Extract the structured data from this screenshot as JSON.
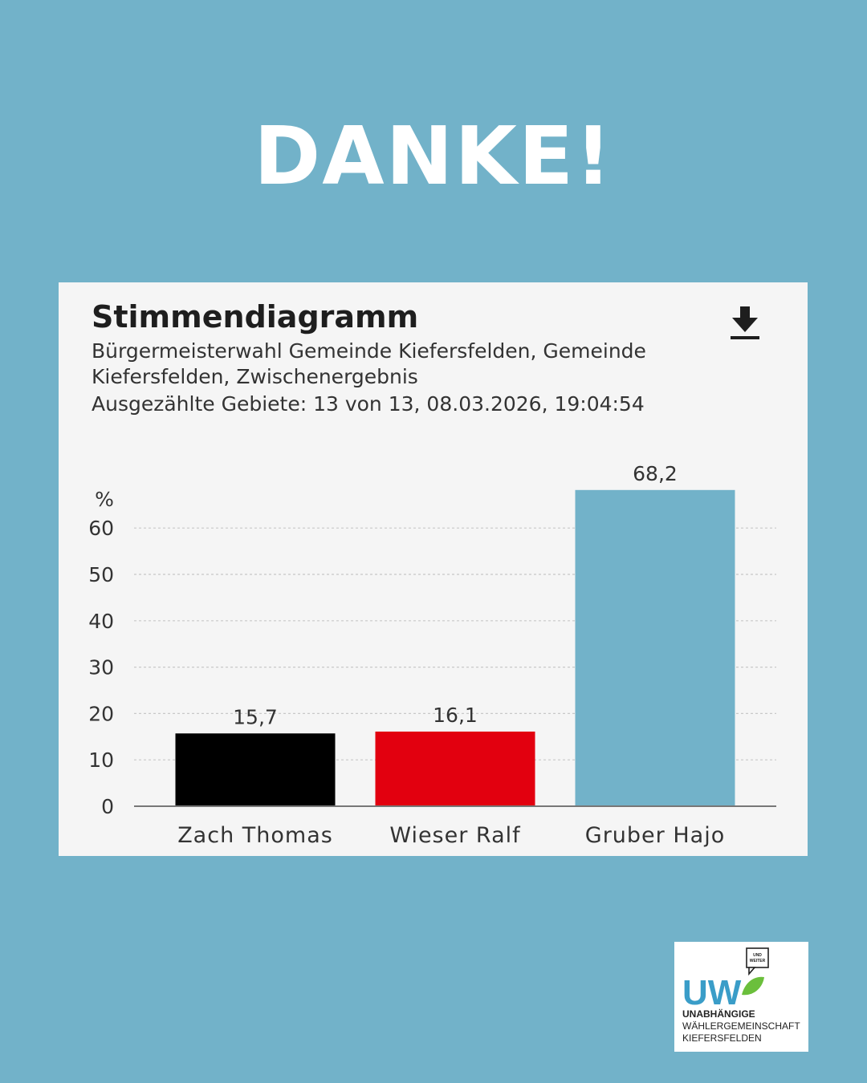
{
  "headline": "DANKE!",
  "card": {
    "title": "Stimmendiagramm",
    "subtitle": "Bürgermeisterwahl Gemeinde Kiefersfelden, Gemeinde Kiefersfelden, Zwischenergebnis",
    "meta": "Ausgezählte Gebiete: 13 von 13, 08.03.2026, 19:04:54",
    "download_icon": "download-icon"
  },
  "chart_data": {
    "type": "bar",
    "categories": [
      "Zach Thomas",
      "Wieser Ralf",
      "Gruber Hajo"
    ],
    "values": [
      15.7,
      16.1,
      68.2
    ],
    "value_labels": [
      "15,7",
      "16,1",
      "68,2"
    ],
    "colors": [
      "#000000",
      "#e2000f",
      "#72b2c9"
    ],
    "yunit": "%",
    "yticks": [
      0,
      10,
      20,
      30,
      40,
      50,
      60
    ],
    "ylim": [
      0,
      70
    ],
    "grid": true,
    "grid_style": "dashed"
  },
  "logo": {
    "mark_text": "UW",
    "bubble_text": "UND WEITER",
    "org_lines": [
      "UNABHÄNGIGE",
      "WÄHLERGEMEINSCHAFT",
      "KIEFERSFELDEN"
    ],
    "colors": {
      "uw": "#3a9dc8",
      "leaf": "#6bbf3c"
    }
  }
}
